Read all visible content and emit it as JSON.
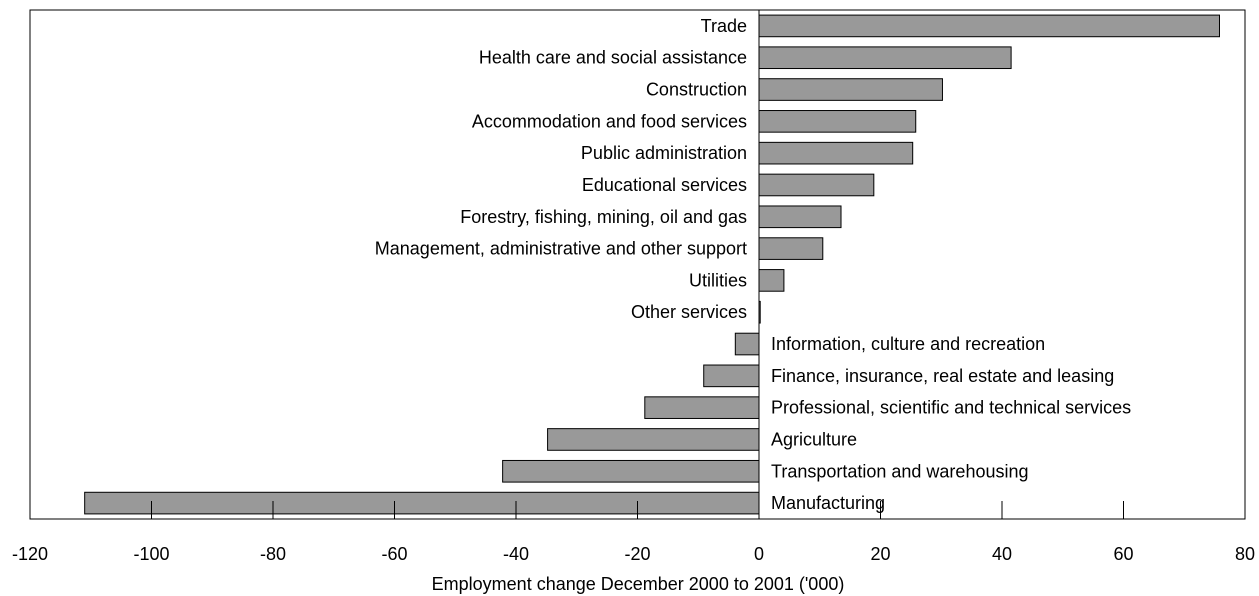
{
  "chart_data": {
    "type": "bar",
    "orientation": "horizontal",
    "categories": [
      "Trade",
      "Health care and social assistance",
      "Construction",
      "Accommodation and food services",
      "Public administration",
      "Educational services",
      "Forestry, fishing, mining, oil and gas",
      "Management, administrative and other support",
      "Utilities",
      "Other services",
      "Information, culture and recreation",
      "Finance, insurance, real estate and leasing",
      "Professional, scientific and technical services",
      "Agriculture",
      "Transportation and warehousing",
      "Manufacturing"
    ],
    "values": [
      75.8,
      41.5,
      30.2,
      25.8,
      25.3,
      18.9,
      13.5,
      10.5,
      4.1,
      0.2,
      -3.9,
      -9.1,
      -18.8,
      -34.8,
      -42.2,
      -111.0
    ],
    "title": "",
    "xlabel": "Employment change December 2000 to 2001 ('000)",
    "ylabel": "",
    "xlim": [
      -120,
      80
    ],
    "xticks": [
      -120,
      -100,
      -80,
      -60,
      -40,
      -20,
      0,
      20,
      40,
      60,
      80
    ],
    "xtick_labels": [
      "-120",
      "-100",
      "-80",
      "-60",
      "-40",
      "-20",
      "0",
      "20",
      "40",
      "60",
      "80"
    ],
    "grid": false,
    "legend": "none",
    "bar_color": "#999999",
    "bar_edge_color": "#000000"
  }
}
